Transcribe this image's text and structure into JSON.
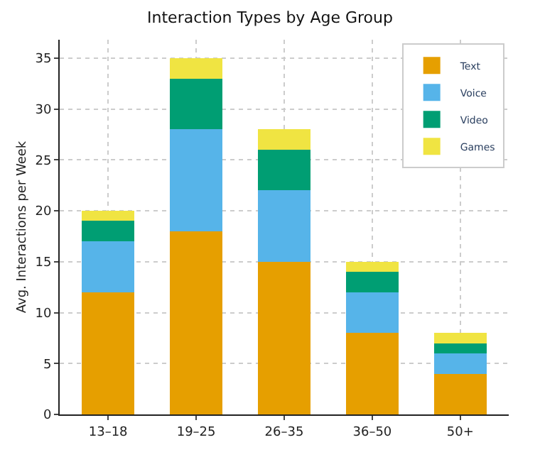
{
  "chart_data": {
    "type": "bar",
    "stacked": true,
    "title": "Interaction Types by Age Group",
    "ylabel": "Avg. Interactions per Week",
    "categories": [
      "13–18",
      "19–25",
      "26–35",
      "36–50",
      "50+"
    ],
    "series": [
      {
        "name": "Text",
        "color": "#e69f00",
        "values": [
          12,
          18,
          15,
          8,
          4
        ]
      },
      {
        "name": "Voice",
        "color": "#56b4e9",
        "values": [
          5,
          10,
          7,
          4,
          2
        ]
      },
      {
        "name": "Video",
        "color": "#009e73",
        "values": [
          2,
          5,
          4,
          2,
          1
        ]
      },
      {
        "name": "Games",
        "color": "#f0e442",
        "values": [
          1,
          2,
          2,
          1,
          1
        ]
      }
    ],
    "ylim": [
      0,
      36.8
    ],
    "yticks": [
      0,
      5,
      10,
      15,
      20,
      25,
      30,
      35
    ],
    "grid": true,
    "legend": "top right"
  }
}
